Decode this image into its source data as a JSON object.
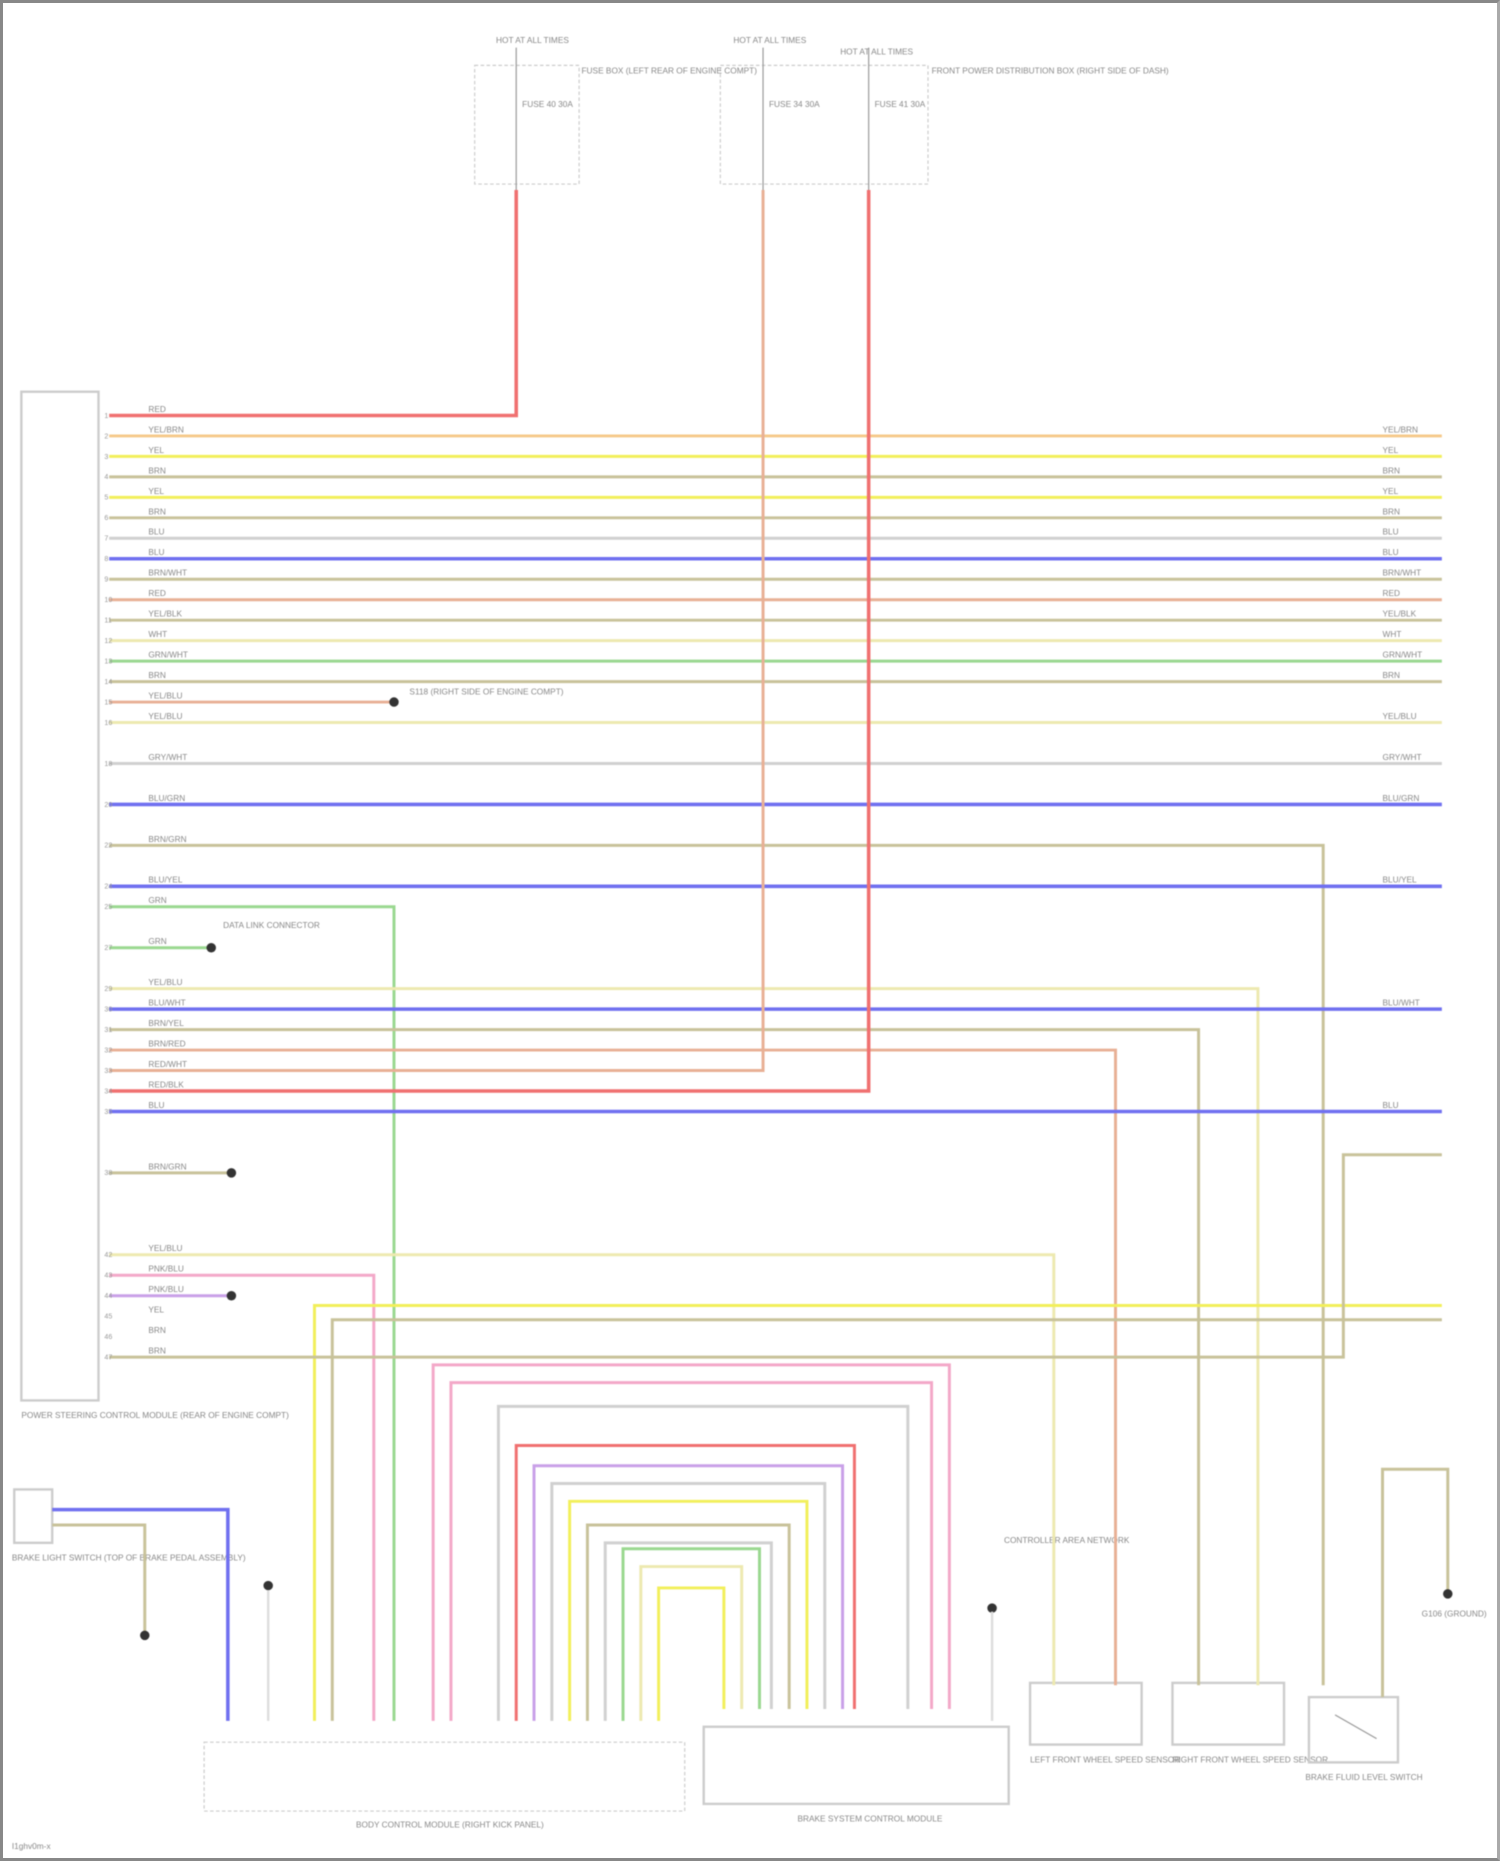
{
  "footer_code": "I1ghv0m-x",
  "fuses": [
    {
      "top": "HOT AT ALL TIMES",
      "fuse": "FUSE 40 30A",
      "wire": "RED"
    },
    {
      "top": "HOT AT ALL TIMES",
      "fuse": "FUSE 34 30A",
      "wire": "RED/WHT"
    },
    {
      "top": "HOT AT ALL TIMES",
      "fuse": "FUSE 41 30A",
      "wire": "RED/BLK"
    }
  ],
  "fuse_box_labels": [
    "FUSE BOX (LEFT REAR OF ENGINE COMPT)",
    "FRONT POWER DISTRIBUTION BOX (RIGHT SIDE OF DASH)"
  ],
  "components": {
    "left_module": "POWER STEERING CONTROL MODULE (REAR OF ENGINE COMPT)",
    "brake_switch": "BRAKE LIGHT SWITCH (TOP OF BRAKE PEDAL ASSEMBLY)",
    "bcm": "BODY CONTROL MODULE (RIGHT KICK PANEL)",
    "bsc": "BRAKE SYSTEM CONTROL MODULE",
    "lf_sensor": "LEFT FRONT WHEEL SPEED SENSOR",
    "rf_sensor": "RIGHT FRONT WHEEL SPEED SENSOR",
    "fluid_switch": "BRAKE FLUID LEVEL SWITCH"
  },
  "splice_labels": [
    "S118 (RIGHT SIDE OF ENGINE COMPT)",
    "CONTROLLER AREA NETWORK",
    "DATA LINK CONNECTOR",
    "G106 (GROUND)"
  ],
  "colors": {
    "red": "#f07070",
    "orange": "#f5c98a",
    "yellow": "#f2ef5a",
    "tan": "#c8c29a",
    "blue": "#7070f0",
    "salmon": "#e8b095",
    "green": "#9ad890",
    "lyellow": "#ede9b0",
    "gray": "#d0d0d0",
    "pink": "#f3a8c8",
    "purple": "#c9a0e8"
  },
  "wires": [
    {
      "pin": 1,
      "color": "red",
      "label": "RED"
    },
    {
      "pin": 2,
      "color": "orange",
      "label": "YEL/BRN"
    },
    {
      "pin": 3,
      "color": "yellow",
      "label": "YEL"
    },
    {
      "pin": 4,
      "color": "tan",
      "label": "BRN"
    },
    {
      "pin": 5,
      "color": "yellow",
      "label": "YEL"
    },
    {
      "pin": 6,
      "color": "tan",
      "label": "BRN"
    },
    {
      "pin": 7,
      "color": "gray",
      "label": "BLU"
    },
    {
      "pin": 8,
      "color": "blue",
      "label": "BLU"
    },
    {
      "pin": 9,
      "color": "tan",
      "label": "BRN/WHT"
    },
    {
      "pin": 10,
      "color": "salmon",
      "label": "RED"
    },
    {
      "pin": 11,
      "color": "tan",
      "label": "YEL/BLK"
    },
    {
      "pin": 12,
      "color": "lyellow",
      "label": "WHT"
    },
    {
      "pin": 13,
      "color": "green",
      "label": "GRN/WHT"
    },
    {
      "pin": 14,
      "color": "tan",
      "label": "BRN"
    },
    {
      "pin": 15,
      "color": "salmon",
      "label": "YEL/BLU"
    },
    {
      "pin": 16,
      "color": "lyellow",
      "label": "YEL/BLU"
    },
    {
      "pin": 18,
      "color": "gray",
      "label": "GRY/WHT"
    },
    {
      "pin": 20,
      "color": "blue",
      "label": "BLU/GRN"
    },
    {
      "pin": 22,
      "color": "tan",
      "label": "BRN/GRN"
    },
    {
      "pin": 24,
      "color": "blue",
      "label": "BLU/YEL"
    },
    {
      "pin": 25,
      "color": "green",
      "label": "GRN"
    },
    {
      "pin": 27,
      "color": "green",
      "label": "GRN"
    },
    {
      "pin": 29,
      "color": "lyellow",
      "label": "YEL/BLU"
    },
    {
      "pin": 30,
      "color": "blue",
      "label": "BLU/WHT"
    },
    {
      "pin": 31,
      "color": "tan",
      "label": "BRN/YEL"
    },
    {
      "pin": 32,
      "color": "salmon",
      "label": "BRN/RED"
    },
    {
      "pin": 33,
      "color": "salmon",
      "label": "RED/WHT"
    },
    {
      "pin": 34,
      "color": "red",
      "label": "RED/BLK"
    },
    {
      "pin": 35,
      "color": "blue",
      "label": "BLU"
    },
    {
      "pin": 38,
      "color": "tan",
      "label": "BRN/GRN"
    },
    {
      "pin": 42,
      "color": "lyellow",
      "label": "YEL/BLU"
    },
    {
      "pin": 43,
      "color": "pink",
      "label": "PNK/BLU"
    },
    {
      "pin": 44,
      "color": "purple",
      "label": "PNK/BLU"
    },
    {
      "pin": 45,
      "color": "yellow",
      "label": "YEL"
    },
    {
      "pin": 46,
      "color": "tan",
      "label": "BRN"
    },
    {
      "pin": 47,
      "color": "tan",
      "label": "BRN"
    }
  ]
}
